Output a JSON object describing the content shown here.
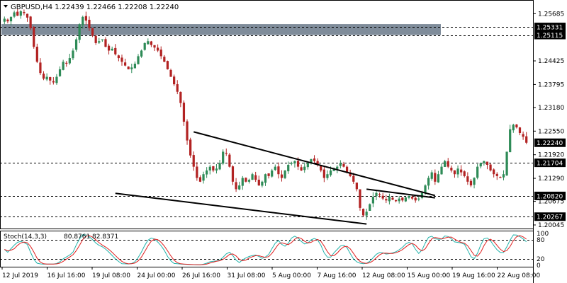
{
  "chart_data": {
    "type": "candlestick",
    "title": "GBPUSD,H4  1.22439 1.22466 1.22208 1.22240",
    "symbol": "GBPUSD,H4",
    "ohlc": [
      "1.22439",
      "1.22466",
      "1.22208",
      "1.22240"
    ],
    "ylim": [
      1.1995,
      1.2605
    ],
    "price_ticks": [
      "1.25685",
      "1.24425",
      "1.23795",
      "1.23180",
      "1.22550",
      "1.21920",
      "1.21290",
      "1.20675",
      "1.20045"
    ],
    "level_tags": [
      {
        "label": "1.25331",
        "value": 1.25331
      },
      {
        "label": "1.25115",
        "value": 1.25115
      },
      {
        "label": "1.22240",
        "value": 1.2224,
        "current": true
      },
      {
        "label": "1.21704",
        "value": 1.21704
      },
      {
        "label": "1.20820",
        "value": 1.2082
      },
      {
        "label": "1.20267",
        "value": 1.20267
      }
    ],
    "zone": {
      "from": 1.25115,
      "to": 1.25331
    },
    "x_labels": [
      "12 Jul 2019",
      "16 Jul 16:00",
      "19 Jul 08:00",
      "24 Jul 00:00",
      "26 Jul 16:00",
      "31 Jul 08:00",
      "5 Aug 00:00",
      "7 Aug 16:00",
      "12 Aug 08:00",
      "15 Aug 00:00",
      "19 Aug 16:00",
      "22 Aug 08:00"
    ],
    "closes": [
      1.2555,
      1.2548,
      1.256,
      1.2572,
      1.2563,
      1.2575,
      1.257,
      1.2558,
      1.253,
      1.248,
      1.244,
      1.241,
      1.2395,
      1.24,
      1.239,
      1.2385,
      1.24,
      1.242,
      1.244,
      1.2435,
      1.245,
      1.247,
      1.25,
      1.254,
      1.256,
      1.255,
      1.253,
      1.251,
      1.249,
      1.2495,
      1.25,
      1.248,
      1.247,
      1.2475,
      1.246,
      1.245,
      1.244,
      1.243,
      1.242,
      1.2425,
      1.2435,
      1.2455,
      1.247,
      1.249,
      1.2495,
      1.2485,
      1.2478,
      1.247,
      1.2455,
      1.244,
      1.242,
      1.24,
      1.238,
      1.236,
      1.233,
      1.228,
      1.223,
      1.219,
      1.216,
      1.213,
      1.212,
      1.214,
      1.215,
      1.216,
      1.215,
      1.2155,
      1.217,
      1.22,
      1.2195,
      1.216,
      1.212,
      1.21,
      1.211,
      1.213,
      1.212,
      1.2125,
      1.214,
      1.2125,
      1.211,
      1.212,
      1.214,
      1.2135,
      1.215,
      1.216,
      1.214,
      1.213,
      1.215,
      1.2165,
      1.217,
      1.2175,
      1.216,
      1.215,
      1.216,
      1.217,
      1.218,
      1.2175,
      1.2165,
      1.215,
      1.213,
      1.214,
      1.215,
      1.2155,
      1.216,
      1.217,
      1.216,
      1.2145,
      1.2135,
      1.212,
      1.21,
      1.205,
      1.203,
      1.204,
      1.206,
      1.208,
      1.209,
      1.2085,
      1.2075,
      1.207,
      1.208,
      1.2072,
      1.2068,
      1.2075,
      1.207,
      1.2078,
      1.2082,
      1.2075,
      1.207,
      1.2075,
      1.209,
      1.211,
      1.213,
      1.2145,
      1.212,
      1.214,
      1.216,
      1.2175,
      1.216,
      1.215,
      1.214,
      1.2155,
      1.2145,
      1.2135,
      1.212,
      1.211,
      1.213,
      1.216,
      1.217,
      1.2175,
      1.2165,
      1.215,
      1.214,
      1.2135,
      1.213,
      1.214,
      1.22,
      1.226,
      1.2272,
      1.2265,
      1.225,
      1.224,
      1.2224
    ],
    "indicator": {
      "name": "Stoch(14,3,3)",
      "values": [
        "80.8761",
        "82.8371"
      ],
      "ylim": [
        0,
        100
      ],
      "levels": [
        20,
        80
      ],
      "axis_labels": [
        "100",
        "80",
        "20",
        "0"
      ]
    },
    "trend_lines": [
      {
        "from": [
          1.2253,
          58
        ],
        "to": [
          1.2083,
          132
        ]
      },
      {
        "from": [
          1.2089,
          34
        ],
        "to": [
          1.2007,
          111
        ]
      },
      {
        "from": [
          1.21,
          111
        ],
        "to": [
          1.2077,
          132
        ]
      }
    ],
    "grid": false,
    "colors": {
      "background": "#ffffff",
      "bull": "#2e8b57",
      "bear": "#b22222",
      "tag": "#000000",
      "zone": "#7f8c9a",
      "stoch_main": "#20b2aa",
      "stoch_signal": "#e02020"
    }
  }
}
